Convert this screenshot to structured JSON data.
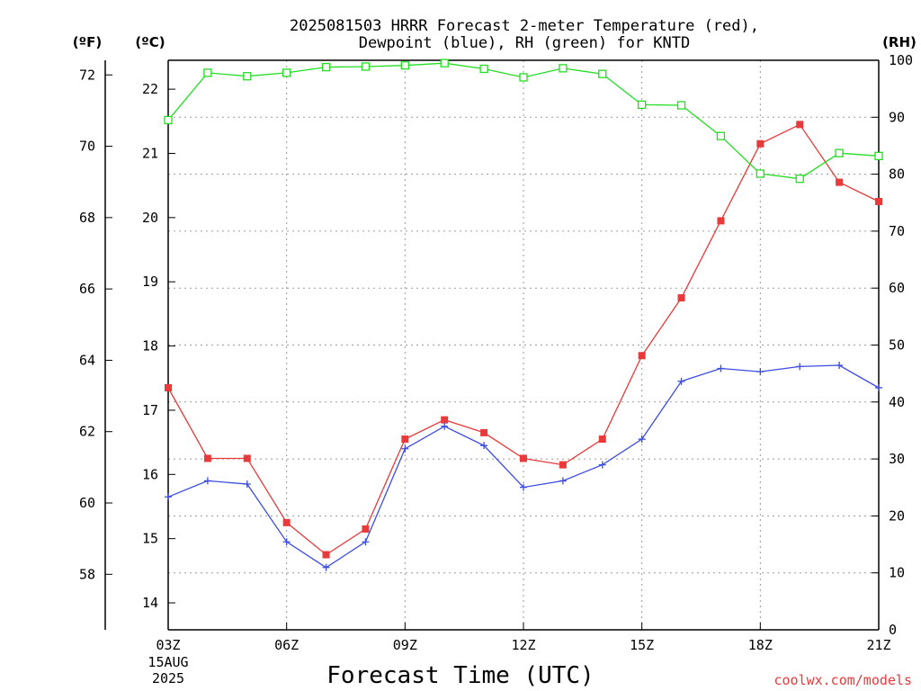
{
  "chart_data": {
    "type": "line",
    "title_lines": [
      "2025081503 HRRR Forecast 2-meter Temperature (red),",
      "Dewpoint (blue), RH (green) for KNTD"
    ],
    "xlabel": "Forecast Time (UTC)",
    "credit": "coolwx.com/models",
    "unit_labels": {
      "fahrenheit": "(ºF)",
      "celsius": "(ºC)",
      "rh": "(RH)"
    },
    "x_date_label": [
      "15AUG",
      "2025"
    ],
    "x_ticks": [
      {
        "hour": 0,
        "label": "03Z"
      },
      {
        "hour": 3,
        "label": "06Z"
      },
      {
        "hour": 6,
        "label": "09Z"
      },
      {
        "hour": 9,
        "label": "12Z"
      },
      {
        "hour": 12,
        "label": "15Z"
      },
      {
        "hour": 15,
        "label": "18Z"
      },
      {
        "hour": 18,
        "label": "21Z"
      }
    ],
    "xlim": [
      0,
      18
    ],
    "celsius_ticks": [
      14,
      15,
      16,
      17,
      18,
      19,
      20,
      21,
      22
    ],
    "celsius_lim": [
      13.58,
      22.45
    ],
    "fahrenheit_ticks": [
      58,
      60,
      62,
      64,
      66,
      68,
      70,
      72
    ],
    "rh_ticks": [
      0,
      10,
      20,
      30,
      40,
      50,
      60,
      70,
      80,
      90,
      100
    ],
    "rh_lim": [
      0,
      100
    ],
    "grid": true,
    "series": [
      {
        "name": "Temperature",
        "color": "#e83a3a",
        "marker": "filled-square",
        "unit": "°C",
        "values": [
          17.35,
          16.25,
          16.25,
          15.25,
          14.75,
          15.15,
          16.55,
          16.85,
          16.65,
          16.25,
          16.15,
          16.55,
          17.85,
          18.75,
          19.95,
          21.15,
          21.45,
          20.55,
          20.25
        ]
      },
      {
        "name": "Dewpoint",
        "color": "#3b4ce0",
        "marker": "plus",
        "unit": "°C",
        "values": [
          15.65,
          15.9,
          15.85,
          14.95,
          14.55,
          14.95,
          16.4,
          16.75,
          16.45,
          15.8,
          15.9,
          16.15,
          16.55,
          17.45,
          17.65,
          17.6,
          17.68,
          17.7,
          17.35
        ]
      },
      {
        "name": "RH",
        "color": "#22dd22",
        "marker": "open-square",
        "unit": "%",
        "values": [
          89.5,
          97.8,
          97.2,
          97.8,
          98.8,
          98.9,
          99.1,
          99.5,
          98.5,
          97.0,
          98.6,
          97.6,
          92.2,
          92.1,
          86.7,
          80.1,
          79.2,
          83.7,
          83.2
        ]
      }
    ]
  }
}
